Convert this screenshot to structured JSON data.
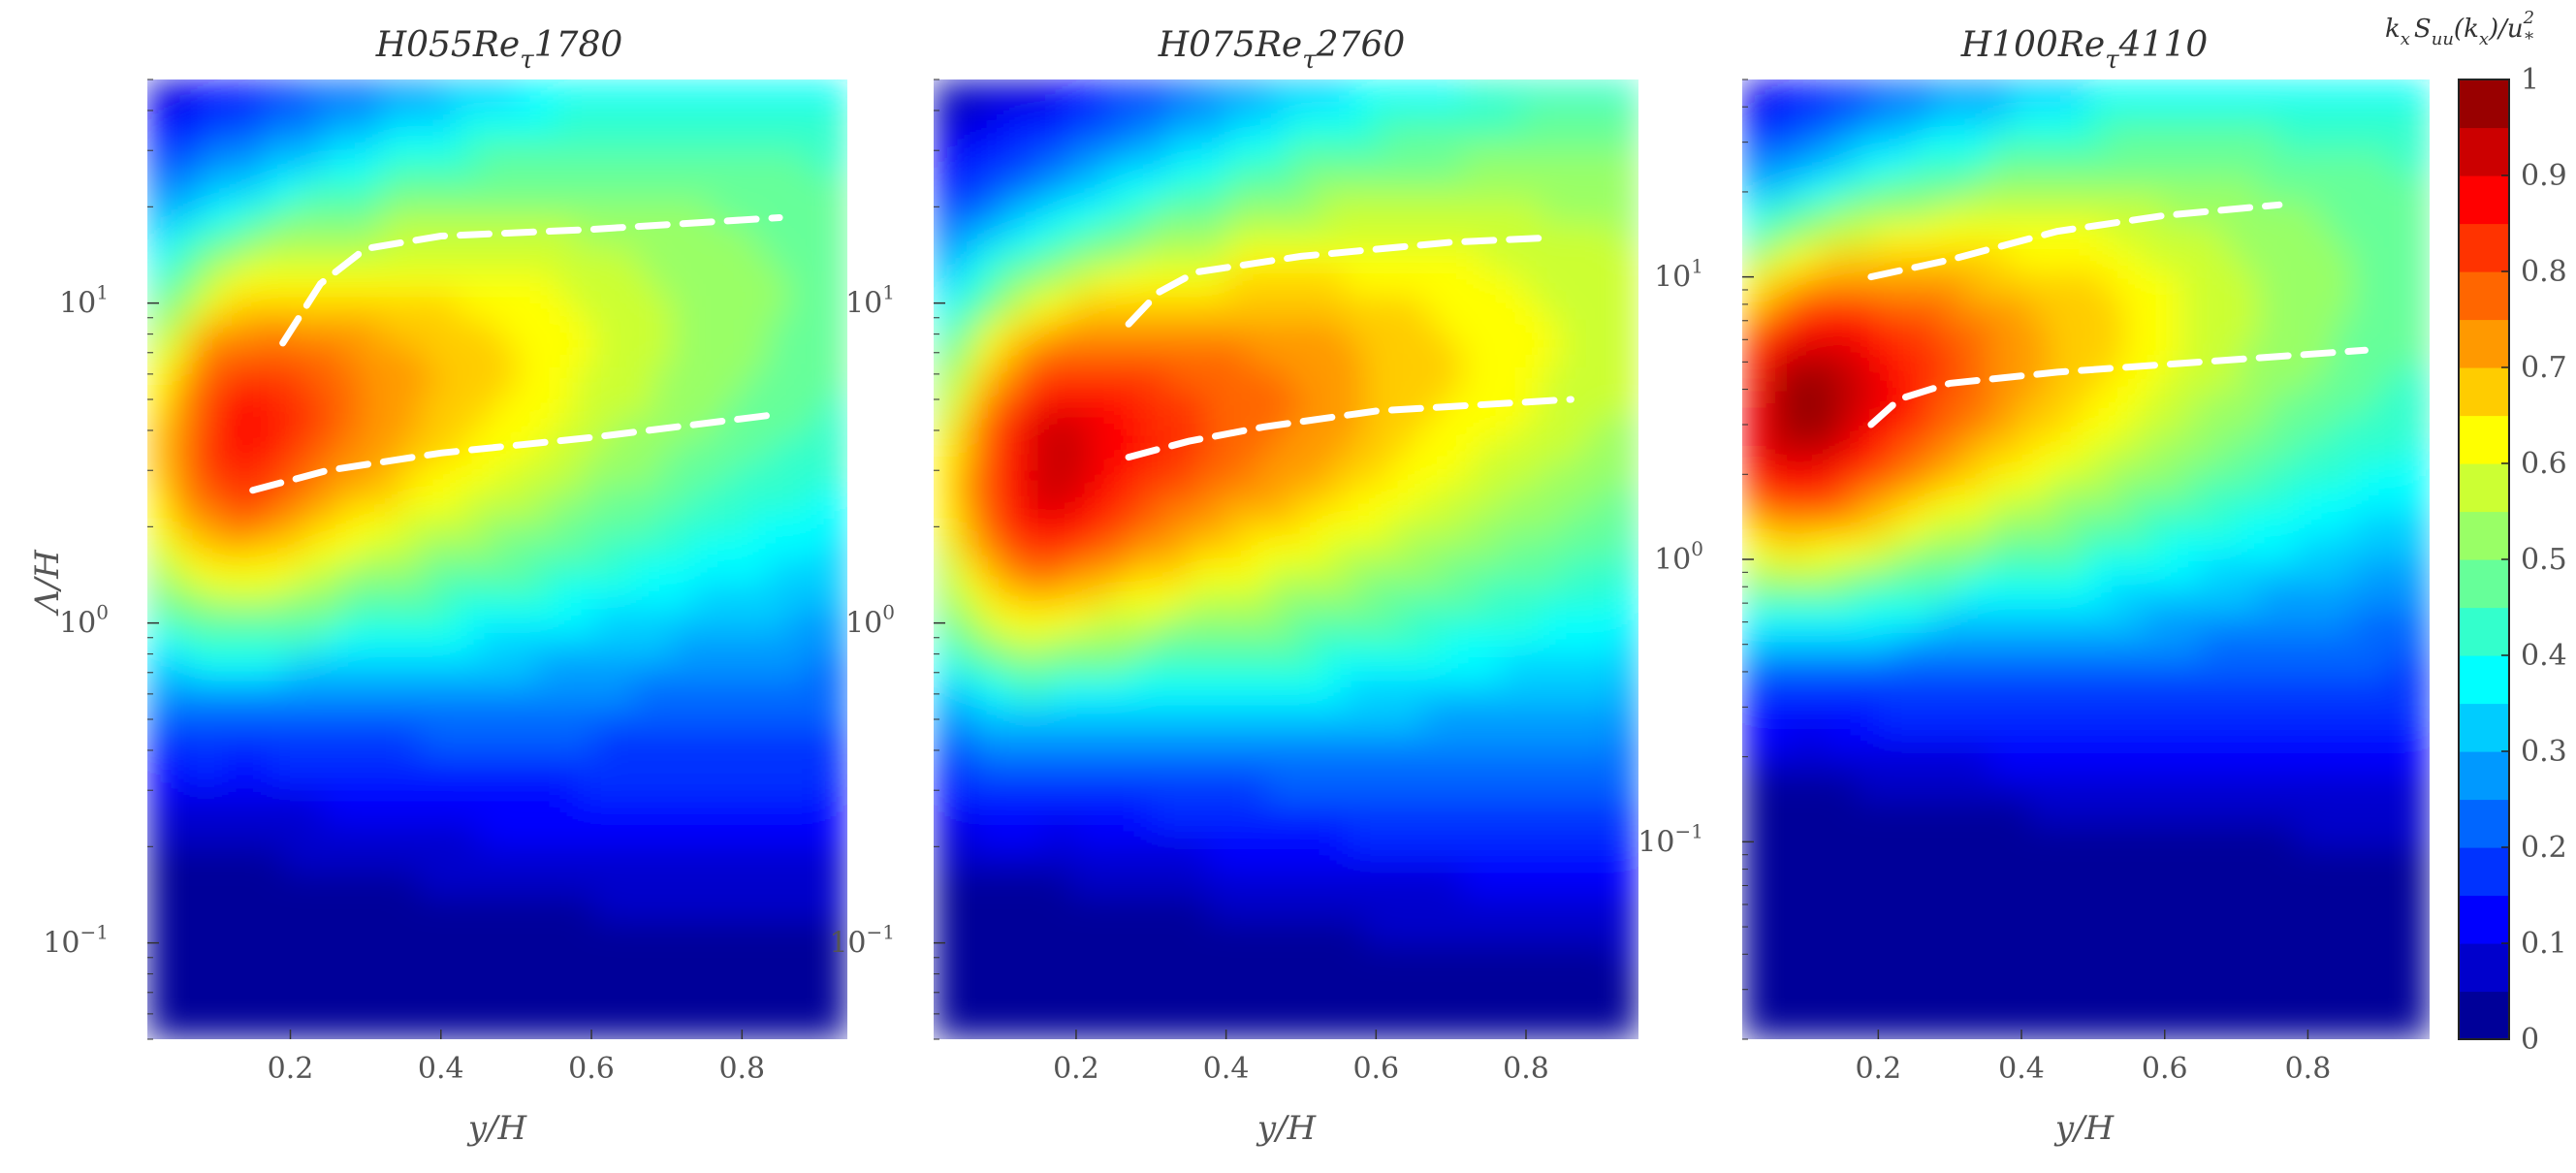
{
  "chart_data": [
    {
      "type": "heatmap",
      "title": "H055Re_τ 1780",
      "title_base": "H055Re",
      "title_sub": "τ",
      "title_tail": "1780",
      "xlabel": "y/H",
      "ylabel": "Λ/H",
      "xlim": [
        0.01,
        0.94
      ],
      "ylim": [
        0.05,
        50
      ],
      "yscale": "log",
      "xticks": [
        0.2,
        0.4,
        0.6,
        0.8
      ],
      "xticklabels": [
        "0.2",
        "0.4",
        "0.6",
        "0.8"
      ],
      "yticks": [
        0.1,
        1,
        10
      ],
      "yticklabel_base": "10",
      "yticklabel_exp": [
        "−1",
        "0",
        "1"
      ],
      "peak": {
        "x": 0.14,
        "y": 4.0,
        "value": 0.87
      },
      "dashed_lines": [
        {
          "x": [
            0.19,
            0.24,
            0.3,
            0.4,
            0.6,
            0.85
          ],
          "y": [
            7.5,
            11.5,
            14.8,
            16.2,
            17.0,
            18.5
          ]
        },
        {
          "x": [
            0.15,
            0.25,
            0.4,
            0.6,
            0.85
          ],
          "y": [
            2.6,
            3.0,
            3.4,
            3.8,
            4.5
          ]
        }
      ]
    },
    {
      "type": "heatmap",
      "title": "H075Re_τ 2760",
      "title_base": "H075Re",
      "title_sub": "τ",
      "title_tail": "2760",
      "xlabel": "y/H",
      "ylabel": "",
      "xlim": [
        0.01,
        0.95
      ],
      "ylim": [
        0.05,
        50
      ],
      "yscale": "log",
      "xticks": [
        0.2,
        0.4,
        0.6,
        0.8
      ],
      "xticklabels": [
        "0.2",
        "0.4",
        "0.6",
        "0.8"
      ],
      "yticks": [
        0.1,
        1,
        10
      ],
      "yticklabel_base": "10",
      "yticklabel_exp": [
        "−1",
        "0",
        "1"
      ],
      "peak": {
        "x": 0.17,
        "y": 3.2,
        "value": 0.93
      },
      "dashed_lines": [
        {
          "x": [
            0.27,
            0.31,
            0.36,
            0.5,
            0.7,
            0.83
          ],
          "y": [
            8.6,
            10.8,
            12.5,
            14.0,
            15.5,
            16.0
          ]
        },
        {
          "x": [
            0.27,
            0.35,
            0.45,
            0.6,
            0.86
          ],
          "y": [
            3.3,
            3.7,
            4.1,
            4.6,
            5.0
          ]
        }
      ]
    },
    {
      "type": "heatmap",
      "title": "H100Re_τ 4110",
      "title_base": "H100Re",
      "title_sub": "τ",
      "title_tail": "4110",
      "xlabel": "y/H",
      "ylabel": "",
      "xlim": [
        0.01,
        0.97
      ],
      "ylim": [
        0.02,
        50
      ],
      "yscale": "log",
      "xticks": [
        0.2,
        0.4,
        0.6,
        0.8
      ],
      "xticklabels": [
        "0.2",
        "0.4",
        "0.6",
        "0.8"
      ],
      "yticks": [
        0.1,
        1,
        10
      ],
      "yticklabel_base": "10",
      "yticklabel_exp": [
        "−1",
        "0",
        "1"
      ],
      "peak": {
        "x": 0.1,
        "y": 3.5,
        "value": 0.98
      },
      "dashed_lines": [
        {
          "x": [
            0.19,
            0.3,
            0.45,
            0.6,
            0.76
          ],
          "y": [
            10.0,
            11.5,
            14.5,
            16.5,
            18.0
          ]
        },
        {
          "x": [
            0.19,
            0.23,
            0.3,
            0.45,
            0.65,
            0.88
          ],
          "y": [
            3.0,
            3.7,
            4.2,
            4.6,
            5.0,
            5.5
          ]
        }
      ]
    }
  ],
  "colorbar": {
    "title_k": "k",
    "title_x1": "x",
    "title_S": "S",
    "title_uu": "uu",
    "title_paren_open": "(k",
    "title_x2": "x",
    "title_paren_close": ")/u",
    "title_exp": "2",
    "title_star": "*",
    "range": [
      0,
      1
    ],
    "ticks": [
      0,
      0.1,
      0.2,
      0.3,
      0.4,
      0.5,
      0.6,
      0.7,
      0.8,
      0.9,
      1
    ],
    "ticklabels": [
      "0",
      "0.1",
      "0.2",
      "0.3",
      "0.4",
      "0.5",
      "0.6",
      "0.7",
      "0.8",
      "0.9",
      "1"
    ],
    "colormap": "jet",
    "levels": 20
  },
  "colors": {
    "dashed_line": "#ffffff",
    "background_level": "#000080"
  }
}
